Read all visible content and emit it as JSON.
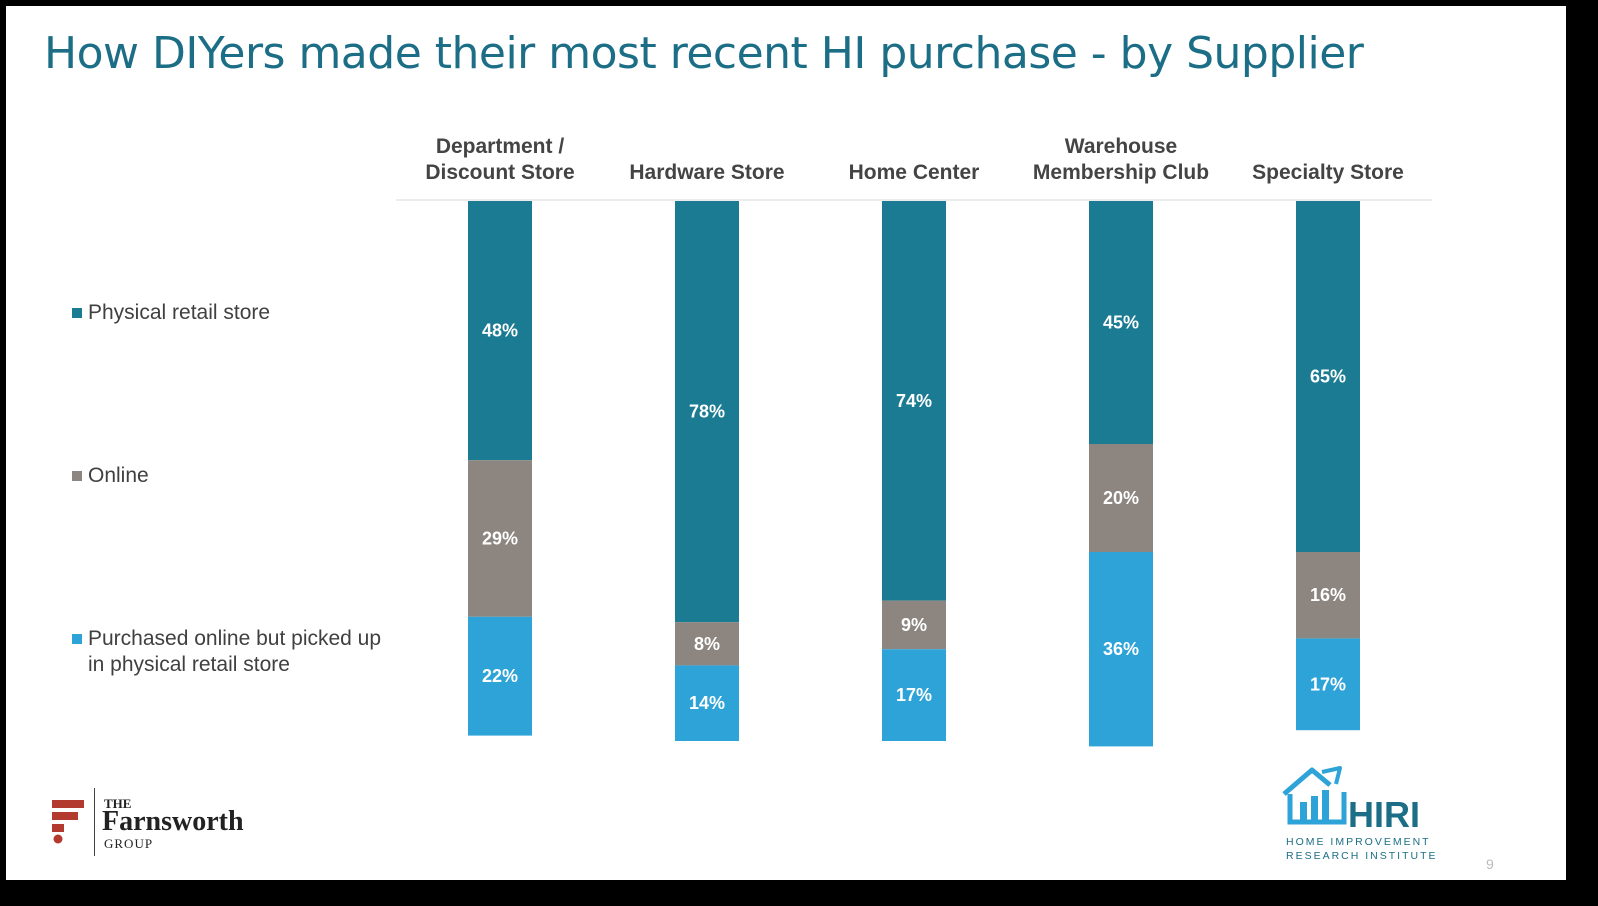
{
  "slide": {
    "title": "How DIYers made their most recent HI purchase - by Supplier",
    "page_number": "9"
  },
  "colors": {
    "physical": "#1b7b93",
    "online": "#8c8580",
    "pickup": "#2ea3d8",
    "title": "#1c6e86"
  },
  "legend": [
    {
      "label": "Physical retail store",
      "color": "#1b7b93"
    },
    {
      "label": "Online",
      "color": "#8c8580"
    },
    {
      "label": "Purchased online but picked up in physical retail store",
      "color": "#2ea3d8"
    }
  ],
  "chart_data": {
    "type": "bar",
    "stacked": true,
    "orientation": "vertical",
    "categories": [
      [
        "Department /",
        "Discount Store"
      ],
      [
        "Hardware Store"
      ],
      [
        "Home Center"
      ],
      [
        "Warehouse",
        "Membership Club"
      ],
      [
        "Specialty Store"
      ]
    ],
    "series": [
      {
        "name": "Physical retail store",
        "values": [
          48,
          78,
          74,
          45,
          65
        ],
        "labels": [
          "48%",
          "78%",
          "74%",
          "45%",
          "65%"
        ]
      },
      {
        "name": "Online",
        "values": [
          29,
          8,
          9,
          20,
          16
        ],
        "labels": [
          "29%",
          "8%",
          "9%",
          "20%",
          "16%"
        ]
      },
      {
        "name": "Purchased online but picked up in physical retail store",
        "values": [
          22,
          14,
          17,
          36,
          17
        ],
        "labels": [
          "22%",
          "14%",
          "17%",
          "36%",
          "17%"
        ]
      }
    ],
    "unit": "%",
    "category_labels_position": "top",
    "legend_position": "left"
  },
  "logos": {
    "farnsworth": {
      "the": "THE",
      "name": "Farnsworth",
      "group": "GROUP"
    },
    "hiri": {
      "name": "HIRI",
      "line1": "HOME IMPROVEMENT",
      "line2": "RESEARCH INSTITUTE"
    }
  }
}
